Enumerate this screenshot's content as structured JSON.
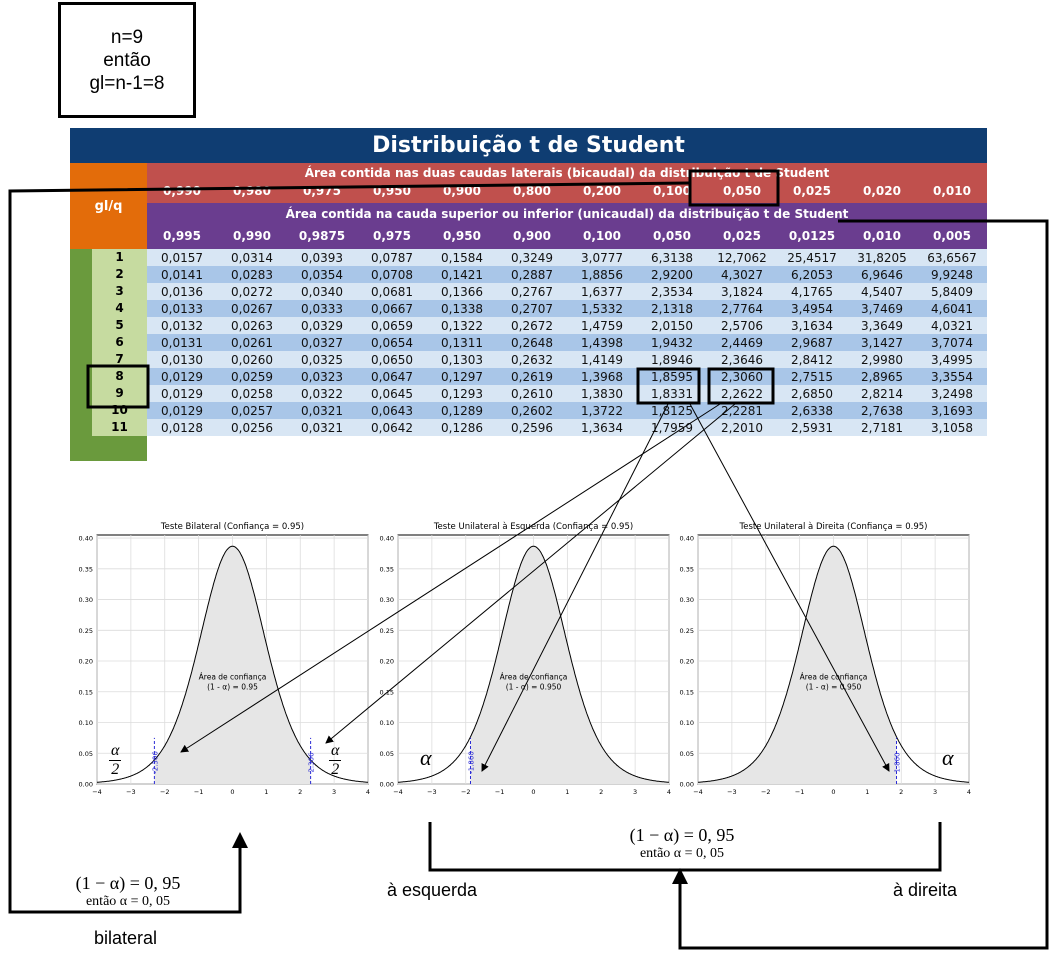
{
  "note": {
    "line1": "n=9",
    "line2": "então",
    "line3": "gl=n-1=8"
  },
  "table": {
    "title": "Distribuição t de Student",
    "gl_header": "gl/q",
    "bicaudal_label": "Área contida nas duas caudas laterais (bicaudal) da distribuição t de Student",
    "bicaudal_q": [
      "0,990",
      "0,980",
      "0,975",
      "0,950",
      "0,900",
      "0,800",
      "0,200",
      "0,100",
      "0,050",
      "0,025",
      "0,020",
      "0,010"
    ],
    "unicaudal_label": "Área contida na cauda superior ou inferior (unicaudal) da distribuição t de Student",
    "unicaudal_q": [
      "0,995",
      "0,990",
      "0,9875",
      "0,975",
      "0,950",
      "0,900",
      "0,100",
      "0,050",
      "0,025",
      "0,0125",
      "0,010",
      "0,005"
    ],
    "rows": [
      {
        "gl": "1",
        "v": [
          "0,0157",
          "0,0314",
          "0,0393",
          "0,0787",
          "0,1584",
          "0,3249",
          "3,0777",
          "6,3138",
          "12,7062",
          "25,4517",
          "31,8205",
          "63,6567"
        ]
      },
      {
        "gl": "2",
        "v": [
          "0,0141",
          "0,0283",
          "0,0354",
          "0,0708",
          "0,1421",
          "0,2887",
          "1,8856",
          "2,9200",
          "4,3027",
          "6,2053",
          "6,9646",
          "9,9248"
        ]
      },
      {
        "gl": "3",
        "v": [
          "0,0136",
          "0,0272",
          "0,0340",
          "0,0681",
          "0,1366",
          "0,2767",
          "1,6377",
          "2,3534",
          "3,1824",
          "4,1765",
          "4,5407",
          "5,8409"
        ]
      },
      {
        "gl": "4",
        "v": [
          "0,0133",
          "0,0267",
          "0,0333",
          "0,0667",
          "0,1338",
          "0,2707",
          "1,5332",
          "2,1318",
          "2,7764",
          "3,4954",
          "3,7469",
          "4,6041"
        ]
      },
      {
        "gl": "5",
        "v": [
          "0,0132",
          "0,0263",
          "0,0329",
          "0,0659",
          "0,1322",
          "0,2672",
          "1,4759",
          "2,0150",
          "2,5706",
          "3,1634",
          "3,3649",
          "4,0321"
        ]
      },
      {
        "gl": "6",
        "v": [
          "0,0131",
          "0,0261",
          "0,0327",
          "0,0654",
          "0,1311",
          "0,2648",
          "1,4398",
          "1,9432",
          "2,4469",
          "2,9687",
          "3,1427",
          "3,7074"
        ]
      },
      {
        "gl": "7",
        "v": [
          "0,0130",
          "0,0260",
          "0,0325",
          "0,0650",
          "0,1303",
          "0,2632",
          "1,4149",
          "1,8946",
          "2,3646",
          "2,8412",
          "2,9980",
          "3,4995"
        ]
      },
      {
        "gl": "8",
        "v": [
          "0,0129",
          "0,0259",
          "0,0323",
          "0,0647",
          "0,1297",
          "0,2619",
          "1,3968",
          "1,8595",
          "2,3060",
          "2,7515",
          "2,8965",
          "3,3554"
        ]
      },
      {
        "gl": "9",
        "v": [
          "0,0129",
          "0,0258",
          "0,0322",
          "0,0645",
          "0,1293",
          "0,2610",
          "1,3830",
          "1,8331",
          "2,2622",
          "2,6850",
          "2,8214",
          "3,2498"
        ]
      },
      {
        "gl": "10",
        "v": [
          "0,0129",
          "0,0257",
          "0,0321",
          "0,0643",
          "0,1289",
          "0,2602",
          "1,3722",
          "1,8125",
          "2,2281",
          "2,6338",
          "2,7638",
          "3,1693"
        ]
      },
      {
        "gl": "11",
        "v": [
          "0,0128",
          "0,0256",
          "0,0321",
          "0,0642",
          "0,1286",
          "0,2596",
          "1,3634",
          "1,7959",
          "2,2010",
          "2,5931",
          "2,7181",
          "3,1058"
        ]
      }
    ]
  },
  "charts": {
    "bilateral": {
      "title": "Teste Bilateral (Confiança = 0.95)",
      "area_l1": "Área de confiança",
      "area_l2": "(1 - α) = 0.95",
      "crit_left": "-2.306",
      "crit_right": "2.306"
    },
    "esquerda": {
      "title": "Teste Unilateral à Esquerda (Confiança = 0.95)",
      "area_l1": "Área de confiança",
      "area_l2": "(1 - α) = 0.950",
      "crit": "-1.860"
    },
    "direita": {
      "title": "Teste Unilateral à Direita (Confiança = 0.95)",
      "area_l1": "Área de confiança",
      "area_l2": "(1 - α) = 0.950",
      "crit": "1.860"
    },
    "y_ticks": [
      "0.00",
      "0.05",
      "0.10",
      "0.15",
      "0.20",
      "0.25",
      "0.30",
      "0.35",
      "0.40"
    ],
    "x_ticks": [
      "−4",
      "−3",
      "−2",
      "−1",
      "0",
      "1",
      "2",
      "3",
      "4"
    ]
  },
  "symbols": {
    "alpha": "α",
    "two": "2"
  },
  "labels": {
    "formula1_l1": "(1 − α) = 0, 95",
    "formula1_l2": "então  α = 0, 05",
    "bilateral": "bilateral",
    "formula2_l1": "(1 − α) = 0, 95",
    "formula2_l2": "então  α = 0, 05",
    "esquerda": "à esquerda",
    "direita": "à direita"
  }
}
